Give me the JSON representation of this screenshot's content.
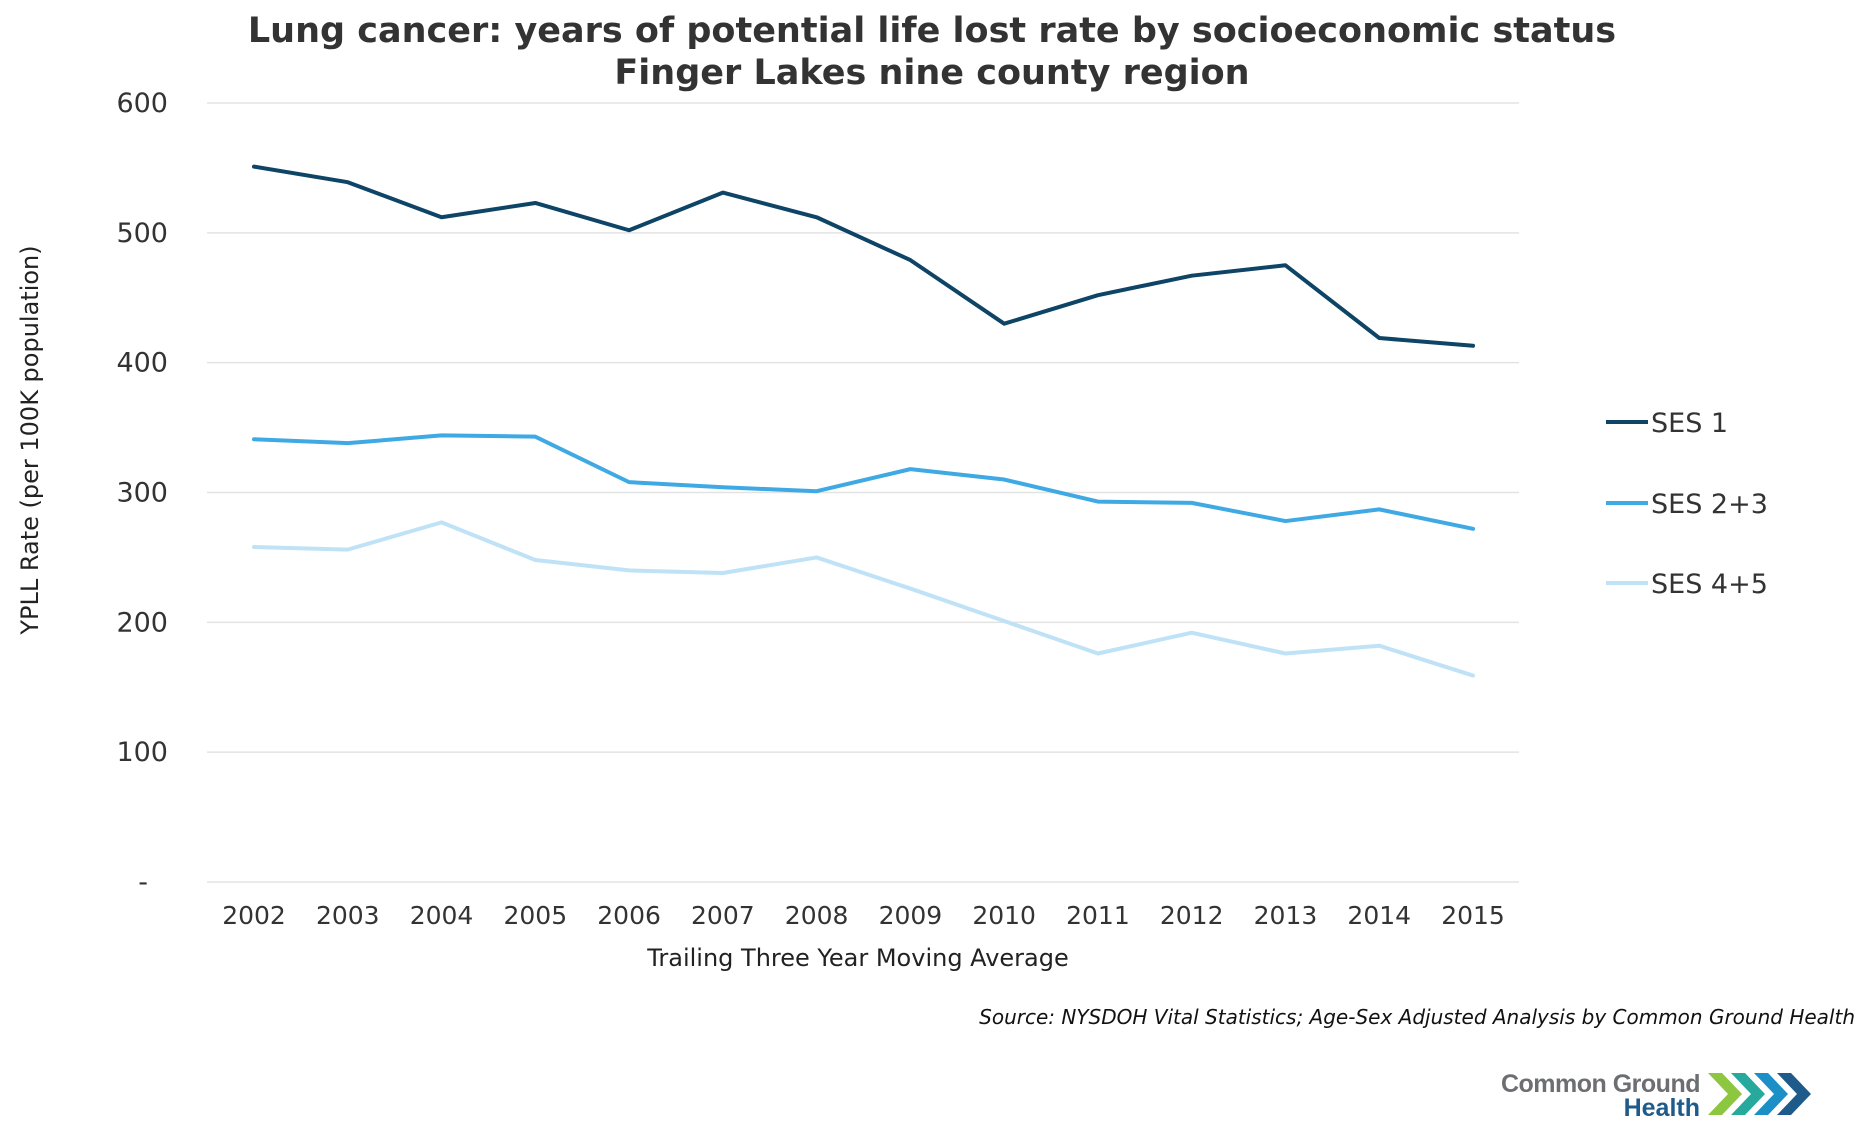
{
  "chart_data": {
    "type": "line",
    "title": "Lung cancer: years of potential life lost rate by socioeconomic status",
    "subtitle": "Finger Lakes nine county region",
    "xlabel": "Trailing Three Year Moving Average",
    "ylabel": "YPLL Rate  (per 100K population)",
    "ylim": [
      0,
      600
    ],
    "yticks": [
      0,
      100,
      200,
      300,
      400,
      500,
      600
    ],
    "ytick_labels": [
      "-",
      "100",
      "200",
      "300",
      "400",
      "500",
      "600"
    ],
    "grid": true,
    "legend_position": "right",
    "x": [
      "2002",
      "2003",
      "2004",
      "2005",
      "2006",
      "2007",
      "2008",
      "2009",
      "2010",
      "2011",
      "2012",
      "2013",
      "2014",
      "2015"
    ],
    "series": [
      {
        "name": "SES 1",
        "color": "#0e4466",
        "values": [
          551,
          539,
          512,
          523,
          502,
          531,
          512,
          479,
          430,
          452,
          467,
          475,
          419,
          413
        ]
      },
      {
        "name": "SES 2+3",
        "color": "#3fa9e4",
        "values": [
          341,
          338,
          344,
          343,
          308,
          304,
          301,
          318,
          310,
          293,
          292,
          278,
          287,
          272
        ]
      },
      {
        "name": "SES 4+5",
        "color": "#bfe2f6",
        "values": [
          258,
          256,
          277,
          248,
          240,
          238,
          250,
          226,
          201,
          176,
          192,
          176,
          182,
          159
        ]
      }
    ],
    "source": "Source: NYSDOH Vital Statistics; Age-Sex Adjusted Analysis by Common Ground Health"
  },
  "logo": {
    "line1": "Common Ground",
    "line2": "Health",
    "chevron_colors": [
      "#8dc63f",
      "#27a99e",
      "#1b8fc6",
      "#1f5b8a"
    ]
  }
}
